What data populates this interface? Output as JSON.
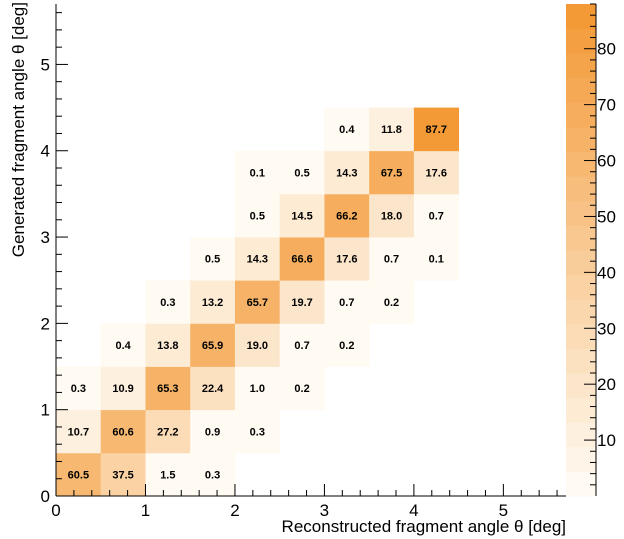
{
  "chart_data": {
    "type": "heatmap",
    "title": "",
    "xlabel": "Reconstructed fragment angle θ [deg]",
    "ylabel": "Generated fragment angle θ [deg]",
    "xlim": [
      0,
      5.7
    ],
    "ylim": [
      0,
      5.7
    ],
    "bin_width": 0.5,
    "x_ticks": [
      "0",
      "1",
      "2",
      "3",
      "4",
      "5"
    ],
    "y_ticks": [
      "0",
      "1",
      "2",
      "3",
      "4",
      "5"
    ],
    "colorbar": {
      "min": 0,
      "max": 88,
      "ticks": [
        "10",
        "20",
        "30",
        "40",
        "50",
        "60",
        "70",
        "80"
      ],
      "low_color": "#fffaf2",
      "high_color": "#f39a37"
    },
    "cells": [
      {
        "row": 0,
        "col": 0,
        "value": 60.5,
        "label": "60.5"
      },
      {
        "row": 0,
        "col": 1,
        "value": 37.5,
        "label": "37.5"
      },
      {
        "row": 0,
        "col": 2,
        "value": 1.5,
        "label": "1.5"
      },
      {
        "row": 0,
        "col": 3,
        "value": 0.3,
        "label": "0.3"
      },
      {
        "row": 1,
        "col": 0,
        "value": 10.7,
        "label": "10.7"
      },
      {
        "row": 1,
        "col": 1,
        "value": 60.6,
        "label": "60.6"
      },
      {
        "row": 1,
        "col": 2,
        "value": 27.2,
        "label": "27.2"
      },
      {
        "row": 1,
        "col": 3,
        "value": 0.9,
        "label": "0.9"
      },
      {
        "row": 1,
        "col": 4,
        "value": 0.3,
        "label": "0.3"
      },
      {
        "row": 2,
        "col": 0,
        "value": 0.3,
        "label": "0.3"
      },
      {
        "row": 2,
        "col": 1,
        "value": 10.9,
        "label": "10.9"
      },
      {
        "row": 2,
        "col": 2,
        "value": 65.3,
        "label": "65.3"
      },
      {
        "row": 2,
        "col": 3,
        "value": 22.4,
        "label": "22.4"
      },
      {
        "row": 2,
        "col": 4,
        "value": 1.0,
        "label": "1.0"
      },
      {
        "row": 2,
        "col": 5,
        "value": 0.2,
        "label": "0.2"
      },
      {
        "row": 3,
        "col": 1,
        "value": 0.4,
        "label": "0.4"
      },
      {
        "row": 3,
        "col": 2,
        "value": 13.8,
        "label": "13.8"
      },
      {
        "row": 3,
        "col": 3,
        "value": 65.9,
        "label": "65.9"
      },
      {
        "row": 3,
        "col": 4,
        "value": 19.0,
        "label": "19.0"
      },
      {
        "row": 3,
        "col": 5,
        "value": 0.7,
        "label": "0.7"
      },
      {
        "row": 3,
        "col": 6,
        "value": 0.2,
        "label": "0.2"
      },
      {
        "row": 4,
        "col": 2,
        "value": 0.3,
        "label": "0.3"
      },
      {
        "row": 4,
        "col": 3,
        "value": 13.2,
        "label": "13.2"
      },
      {
        "row": 4,
        "col": 4,
        "value": 65.7,
        "label": "65.7"
      },
      {
        "row": 4,
        "col": 5,
        "value": 19.7,
        "label": "19.7"
      },
      {
        "row": 4,
        "col": 6,
        "value": 0.7,
        "label": "0.7"
      },
      {
        "row": 4,
        "col": 7,
        "value": 0.2,
        "label": "0.2"
      },
      {
        "row": 5,
        "col": 3,
        "value": 0.5,
        "label": "0.5"
      },
      {
        "row": 5,
        "col": 4,
        "value": 14.3,
        "label": "14.3"
      },
      {
        "row": 5,
        "col": 5,
        "value": 66.6,
        "label": "66.6"
      },
      {
        "row": 5,
        "col": 6,
        "value": 17.6,
        "label": "17.6"
      },
      {
        "row": 5,
        "col": 7,
        "value": 0.7,
        "label": "0.7"
      },
      {
        "row": 5,
        "col": 8,
        "value": 0.1,
        "label": "0.1"
      },
      {
        "row": 6,
        "col": 4,
        "value": 0.5,
        "label": "0.5"
      },
      {
        "row": 6,
        "col": 5,
        "value": 14.5,
        "label": "14.5"
      },
      {
        "row": 6,
        "col": 6,
        "value": 66.2,
        "label": "66.2"
      },
      {
        "row": 6,
        "col": 7,
        "value": 18.0,
        "label": "18.0"
      },
      {
        "row": 6,
        "col": 8,
        "value": 0.7,
        "label": "0.7"
      },
      {
        "row": 7,
        "col": 4,
        "value": 0.1,
        "label": "0.1"
      },
      {
        "row": 7,
        "col": 5,
        "value": 0.5,
        "label": "0.5"
      },
      {
        "row": 7,
        "col": 6,
        "value": 14.3,
        "label": "14.3"
      },
      {
        "row": 7,
        "col": 7,
        "value": 67.5,
        "label": "67.5"
      },
      {
        "row": 7,
        "col": 8,
        "value": 17.6,
        "label": "17.6"
      },
      {
        "row": 8,
        "col": 6,
        "value": 0.4,
        "label": "0.4"
      },
      {
        "row": 8,
        "col": 7,
        "value": 11.8,
        "label": "11.8"
      },
      {
        "row": 8,
        "col": 8,
        "value": 87.7,
        "label": "87.7"
      }
    ]
  }
}
